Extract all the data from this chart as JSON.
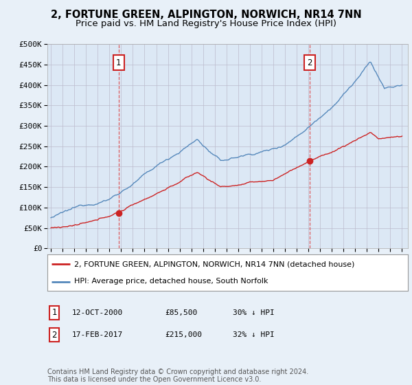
{
  "title": "2, FORTUNE GREEN, ALPINGTON, NORWICH, NR14 7NN",
  "subtitle": "Price paid vs. HM Land Registry's House Price Index (HPI)",
  "background_color": "#e8f0f8",
  "plot_bg_color": "#dce8f5",
  "hpi_color": "#5588bb",
  "price_color": "#cc2222",
  "marker_color": "#cc2222",
  "vline_color": "#dd4444",
  "annotation_box_color": "#cc2222",
  "grid_color": "#bbbbcc",
  "ylim": [
    0,
    500000
  ],
  "yticks": [
    0,
    50000,
    100000,
    150000,
    200000,
    250000,
    300000,
    350000,
    400000,
    450000,
    500000
  ],
  "ytick_labels": [
    "£0",
    "£50K",
    "£100K",
    "£150K",
    "£200K",
    "£250K",
    "£300K",
    "£350K",
    "£400K",
    "£450K",
    "£500K"
  ],
  "legend_label_price": "2, FORTUNE GREEN, ALPINGTON, NORWICH, NR14 7NN (detached house)",
  "legend_label_hpi": "HPI: Average price, detached house, South Norfolk",
  "annotation1_label": "1",
  "annotation1_date": "12-OCT-2000",
  "annotation1_price": "£85,500",
  "annotation1_note": "30% ↓ HPI",
  "annotation1_year": 2000.78,
  "annotation1_value": 85500,
  "annotation2_label": "2",
  "annotation2_date": "17-FEB-2017",
  "annotation2_price": "£215,000",
  "annotation2_note": "32% ↓ HPI",
  "annotation2_year": 2017.12,
  "annotation2_value": 215000,
  "footer_text": "Contains HM Land Registry data © Crown copyright and database right 2024.\nThis data is licensed under the Open Government Licence v3.0.",
  "title_fontsize": 10.5,
  "subtitle_fontsize": 9.5,
  "tick_fontsize": 8,
  "legend_fontsize": 8,
  "footer_fontsize": 7
}
